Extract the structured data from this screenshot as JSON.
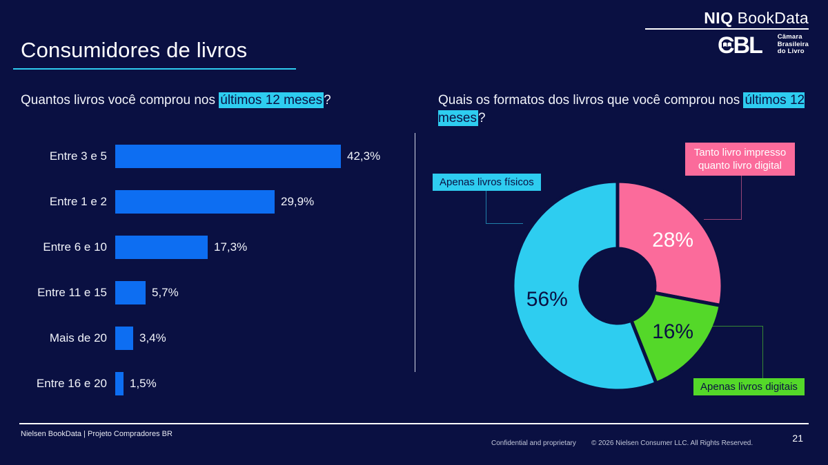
{
  "slide": {
    "title": "Consumidores de livros",
    "background_color": "#0a1042",
    "accent_cyan": "#2ecdf0"
  },
  "header": {
    "niq_bold": "NIQ",
    "niq_rest": "BookData",
    "cbl_logo": "CBL",
    "cbl_org_line1": "Câmara",
    "cbl_org_line2": "Brasileira",
    "cbl_org_line3": "do Livro"
  },
  "questions": {
    "left_prefix": "Quantos livros você comprou nos ",
    "left_highlight": "últimos 12 meses",
    "left_suffix": "?",
    "right_prefix": "Quais os formatos dos livros que você comprou nos ",
    "right_highlight": "últimos 12 meses",
    "right_suffix": "?"
  },
  "chart_data": [
    {
      "type": "bar",
      "orientation": "horizontal",
      "title": "Quantos livros você comprou nos últimos 12 meses?",
      "categories": [
        "Entre 3 e 5",
        "Entre 1 e 2",
        "Entre 6 e 10",
        "Entre 11 e 15",
        "Mais de 20",
        "Entre 16 e 20"
      ],
      "values": [
        42.3,
        29.9,
        17.3,
        5.7,
        3.4,
        1.5
      ],
      "value_labels": [
        "42,3%",
        "29,9%",
        "17,3%",
        "5,7%",
        "3,4%",
        "1,5%"
      ],
      "bar_color": "#0d6ef2",
      "xlim": [
        0,
        45
      ],
      "grid": false,
      "legend": false
    },
    {
      "type": "pie",
      "donut": true,
      "title": "Quais os formatos dos livros que você comprou nos últimos 12 meses?",
      "start_angle_deg": 0,
      "clockwise": true,
      "slices": [
        {
          "label": "Tanto livro impresso quanto livro digital",
          "value": 28,
          "display": "28%",
          "color": "#fb6b9b",
          "text_color": "#ffffff"
        },
        {
          "label": "Apenas livros digitais",
          "value": 16,
          "display": "16%",
          "color": "#54d829",
          "text_color": "#0a1042"
        },
        {
          "label": "Apenas livros físicos",
          "value": 56,
          "display": "56%",
          "color": "#2ecdf0",
          "text_color": "#0a1042"
        }
      ],
      "legend": false
    }
  ],
  "callouts": [
    {
      "label": "Apenas livros físicos",
      "bg": "#2ecdf0",
      "text_color": "#0a1042"
    },
    {
      "label": "Tanto livro impresso quanto livro digital",
      "bg": "#fb6b9b",
      "text_color": "#ffffff"
    },
    {
      "label": "Apenas livros digitais",
      "bg": "#54d829",
      "text_color": "#0a1042"
    }
  ],
  "footer": {
    "left": "Nielsen BookData | Projeto Compradores BR",
    "confidential": "Confidential and proprietary",
    "copyright": "© 2026 Nielsen Consumer LLC. All Rights Reserved.",
    "page": "21"
  }
}
